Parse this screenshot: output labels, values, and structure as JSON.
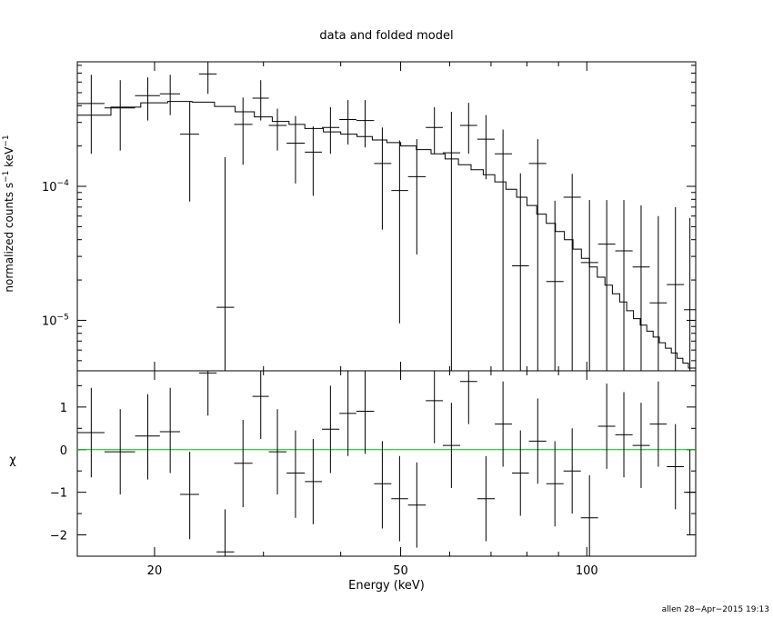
{
  "chart_data": [
    {
      "type": "scatter",
      "title": "data and folded model",
      "xlabel": "",
      "ylabel": "normalized counts s",
      "ylabel_unit": "keV",
      "ylabel_exp": "−1",
      "xscale": "log",
      "yscale": "log",
      "xlim": [
        15.0,
        150.0
      ],
      "ylim": [
        4.2e-06,
        0.00085
      ],
      "ytick_labels": [
        {
          "value": 0.0001,
          "base": "10",
          "exp": "−4"
        },
        {
          "value": 1e-05,
          "base": "10",
          "exp": "−5"
        }
      ],
      "series": [
        {
          "style": "crosses",
          "points": [
            {
              "x": 15.8,
              "xlo": 15.0,
              "xhi": 16.6,
              "y": 0.000415,
              "ylo": 0.000175,
              "yhi": 0.00068
            },
            {
              "x": 17.6,
              "xlo": 16.6,
              "xhi": 18.6,
              "y": 0.000385,
              "ylo": 0.000185,
              "yhi": 0.00062
            },
            {
              "x": 19.5,
              "xlo": 18.6,
              "xhi": 20.4,
              "y": 0.000475,
              "ylo": 0.00031,
              "yhi": 0.00065
            },
            {
              "x": 21.2,
              "xlo": 20.4,
              "xhi": 22.0,
              "y": 0.00049,
              "ylo": 0.00034,
              "yhi": 0.00068
            },
            {
              "x": 22.8,
              "xlo": 22.0,
              "xhi": 23.6,
              "y": 0.000245,
              "ylo": 7.7e-05,
              "yhi": 0.00043
            },
            {
              "x": 24.4,
              "xlo": 23.6,
              "xhi": 25.2,
              "y": 0.00069,
              "ylo": 0.00049,
              "yhi": 0.00085
            },
            {
              "x": 26.0,
              "xlo": 25.2,
              "xhi": 26.9,
              "y": 1.25e-05,
              "ylo": 4.2e-06,
              "yhi": 0.000165
            },
            {
              "x": 27.8,
              "xlo": 26.9,
              "xhi": 28.8,
              "y": 0.00029,
              "ylo": 0.000145,
              "yhi": 0.00046
            },
            {
              "x": 29.7,
              "xlo": 28.8,
              "xhi": 30.6,
              "y": 0.000455,
              "ylo": 0.00031,
              "yhi": 0.00062
            },
            {
              "x": 31.6,
              "xlo": 30.6,
              "xhi": 32.7,
              "y": 0.000285,
              "ylo": 0.000185,
              "yhi": 0.00038
            },
            {
              "x": 33.8,
              "xlo": 32.7,
              "xhi": 35.0,
              "y": 0.00021,
              "ylo": 0.000105,
              "yhi": 0.000335
            },
            {
              "x": 36.1,
              "xlo": 35.0,
              "xhi": 37.3,
              "y": 0.00018,
              "ylo": 8.5e-05,
              "yhi": 0.00028
            },
            {
              "x": 38.5,
              "xlo": 37.3,
              "xhi": 39.8,
              "y": 0.000275,
              "ylo": 0.000175,
              "yhi": 0.00039
            },
            {
              "x": 41.1,
              "xlo": 39.8,
              "xhi": 42.4,
              "y": 0.000315,
              "ylo": 0.000205,
              "yhi": 0.00044
            },
            {
              "x": 43.8,
              "xlo": 42.4,
              "xhi": 45.3,
              "y": 0.00031,
              "ylo": 0.000195,
              "yhi": 0.00044
            },
            {
              "x": 46.7,
              "xlo": 45.3,
              "xhi": 48.3,
              "y": 0.000148,
              "ylo": 4.75e-05,
              "yhi": 0.000275
            },
            {
              "x": 49.8,
              "xlo": 48.3,
              "xhi": 51.4,
              "y": 9.3e-05,
              "ylo": 9.5e-06,
              "yhi": 0.00022
            },
            {
              "x": 53.1,
              "xlo": 51.4,
              "xhi": 54.9,
              "y": 0.000118,
              "ylo": 3.1e-05,
              "yhi": 0.000225
            },
            {
              "x": 56.7,
              "xlo": 54.9,
              "xhi": 58.5,
              "y": 0.000275,
              "ylo": 0.000175,
              "yhi": 0.00039
            },
            {
              "x": 60.4,
              "xlo": 58.5,
              "xhi": 62.4,
              "y": 0.000178,
              "ylo": 4.2e-06,
              "yhi": 0.00036
            },
            {
              "x": 64.4,
              "xlo": 62.4,
              "xhi": 66.5,
              "y": 0.000285,
              "ylo": 0.000175,
              "yhi": 0.00042
            },
            {
              "x": 68.7,
              "xlo": 66.5,
              "xhi": 71.0,
              "y": 0.000225,
              "ylo": 0.000113,
              "yhi": 0.00034
            },
            {
              "x": 73.2,
              "xlo": 71.0,
              "xhi": 75.7,
              "y": 0.000175,
              "ylo": 4.2e-06,
              "yhi": 0.000265
            },
            {
              "x": 78.1,
              "xlo": 75.7,
              "xhi": 80.6,
              "y": 2.55e-05,
              "ylo": 4.2e-06,
              "yhi": 0.000125
            },
            {
              "x": 83.3,
              "xlo": 80.6,
              "xhi": 86.0,
              "y": 0.000148,
              "ylo": 4.2e-06,
              "yhi": 0.000225
            },
            {
              "x": 88.8,
              "xlo": 86.0,
              "xhi": 91.7,
              "y": 1.95e-05,
              "ylo": 4.2e-06,
              "yhi": 7.8e-05
            },
            {
              "x": 94.7,
              "xlo": 91.7,
              "xhi": 97.8,
              "y": 8.3e-05,
              "ylo": 4.2e-06,
              "yhi": 0.000124
            },
            {
              "x": 101.0,
              "xlo": 97.8,
              "xhi": 104.3,
              "y": 2.7e-05,
              "ylo": 4.2e-06,
              "yhi": 7.9e-05
            },
            {
              "x": 107.7,
              "xlo": 104.3,
              "xhi": 111.2,
              "y": 3.7e-05,
              "ylo": 4.2e-06,
              "yhi": 7.9e-05
            },
            {
              "x": 114.8,
              "xlo": 111.2,
              "xhi": 118.6,
              "y": 3.3e-05,
              "ylo": 4.2e-06,
              "yhi": 7.9e-05
            },
            {
              "x": 122.4,
              "xlo": 118.6,
              "xhi": 126.4,
              "y": 2.5e-05,
              "ylo": 4.2e-06,
              "yhi": 7.2e-05
            },
            {
              "x": 130.5,
              "xlo": 126.4,
              "xhi": 134.7,
              "y": 1.35e-05,
              "ylo": 4.2e-06,
              "yhi": 6e-05
            },
            {
              "x": 139.1,
              "xlo": 134.7,
              "xhi": 143.6,
              "y": 1.85e-05,
              "ylo": 4.2e-06,
              "yhi": 7e-05
            },
            {
              "x": 146.8,
              "xlo": 143.6,
              "xhi": 150.0,
              "y": 1.2e-05,
              "ylo": 4.2e-06,
              "yhi": 5.8e-05
            }
          ]
        },
        {
          "style": "step",
          "edges": [
            15.0,
            17.0,
            19.0,
            21.0,
            23.0,
            25.0,
            27.0,
            29.0,
            31.0,
            33.0,
            35.0,
            37.5,
            40.0,
            42.5,
            45.0,
            47.5,
            50.0,
            53.0,
            56.0,
            59.0,
            62.0,
            65.0,
            68.0,
            71.0,
            74.0,
            77.0,
            80.0,
            83.0,
            86.0,
            89.0,
            92.0,
            95.0,
            98.0,
            101.0,
            104.0,
            107.0,
            110.0,
            113.0,
            116.0,
            119.0,
            122.0,
            125.0,
            128.0,
            131.0,
            134.0,
            137.0,
            140.0,
            143.0,
            146.0,
            150.0
          ],
          "values": [
            0.00034,
            0.00039,
            0.00042,
            0.00043,
            0.000425,
            0.000395,
            0.00036,
            0.00033,
            0.000305,
            0.00029,
            0.00027,
            0.000255,
            0.000245,
            0.000235,
            0.000222,
            0.000212,
            0.0002,
            0.000188,
            0.000175,
            0.00016,
            0.000145,
            0.000133,
            0.000122,
            0.000108,
            9.5e-05,
            8.3e-05,
            7.2e-05,
            6.2e-05,
            5.3e-05,
            4.6e-05,
            4e-05,
            3.4e-05,
            2.9e-05,
            2.5e-05,
            2.1e-05,
            1.83e-05,
            1.58e-05,
            1.37e-05,
            1.18e-05,
            1.03e-05,
            9.2e-06,
            8.3e-06,
            7.5e-06,
            6.8e-06,
            6.2e-06,
            5.7e-06,
            5.2e-06,
            4.8e-06,
            4.4e-06
          ]
        }
      ]
    },
    {
      "type": "scatter",
      "xlabel": "Energy (keV)",
      "ylabel": "χ",
      "xscale": "log",
      "xlim": [
        15.0,
        150.0
      ],
      "ylim": [
        -2.5,
        1.85
      ],
      "xticks": [
        20,
        50,
        100
      ],
      "xtick_labels": [
        "20",
        "50",
        "100"
      ],
      "yticks": [
        -2,
        -1,
        0,
        1
      ],
      "ytick_labels": [
        "−2",
        "−1",
        "0",
        "1"
      ],
      "zero_line_color": "#00c000",
      "residuals": [
        {
          "x": 15.8,
          "xlo": 15.0,
          "xhi": 16.6,
          "y": 0.4,
          "ylo": -0.65,
          "yhi": 1.45
        },
        {
          "x": 17.6,
          "xlo": 16.6,
          "xhi": 18.6,
          "y": -0.05,
          "ylo": -1.05,
          "yhi": 0.95
        },
        {
          "x": 19.5,
          "xlo": 18.6,
          "xhi": 20.4,
          "y": 0.32,
          "ylo": -0.7,
          "yhi": 1.3
        },
        {
          "x": 21.2,
          "xlo": 20.4,
          "xhi": 22.0,
          "y": 0.42,
          "ylo": -0.55,
          "yhi": 1.45
        },
        {
          "x": 22.8,
          "xlo": 22.0,
          "xhi": 23.6,
          "y": -1.05,
          "ylo": -2.1,
          "yhi": -0.05
        },
        {
          "x": 24.4,
          "xlo": 23.6,
          "xhi": 25.2,
          "y": 1.8,
          "ylo": 0.8,
          "yhi": 1.85
        },
        {
          "x": 26.0,
          "xlo": 25.2,
          "xhi": 26.9,
          "y": -2.4,
          "ylo": -2.5,
          "yhi": -1.4
        },
        {
          "x": 27.8,
          "xlo": 26.9,
          "xhi": 28.8,
          "y": -0.32,
          "ylo": -1.35,
          "yhi": 0.7
        },
        {
          "x": 29.7,
          "xlo": 28.8,
          "xhi": 30.6,
          "y": 1.25,
          "ylo": 0.25,
          "yhi": 1.85
        },
        {
          "x": 31.6,
          "xlo": 30.6,
          "xhi": 32.7,
          "y": -0.05,
          "ylo": -1.05,
          "yhi": 0.95
        },
        {
          "x": 33.8,
          "xlo": 32.7,
          "xhi": 35.0,
          "y": -0.55,
          "ylo": -1.6,
          "yhi": 0.45
        },
        {
          "x": 36.1,
          "xlo": 35.0,
          "xhi": 37.3,
          "y": -0.75,
          "ylo": -1.75,
          "yhi": 0.25
        },
        {
          "x": 38.5,
          "xlo": 37.3,
          "xhi": 39.8,
          "y": 0.48,
          "ylo": -0.55,
          "yhi": 1.5
        },
        {
          "x": 41.1,
          "xlo": 39.8,
          "xhi": 42.4,
          "y": 0.85,
          "ylo": -0.15,
          "yhi": 1.85
        },
        {
          "x": 43.8,
          "xlo": 42.4,
          "xhi": 45.3,
          "y": 0.9,
          "ylo": -0.1,
          "yhi": 1.85
        },
        {
          "x": 46.7,
          "xlo": 45.3,
          "xhi": 48.3,
          "y": -0.8,
          "ylo": -1.85,
          "yhi": 0.2
        },
        {
          "x": 49.8,
          "xlo": 48.3,
          "xhi": 51.4,
          "y": -1.15,
          "ylo": -2.15,
          "yhi": -0.15
        },
        {
          "x": 53.1,
          "xlo": 51.4,
          "xhi": 54.9,
          "y": -1.3,
          "ylo": -2.3,
          "yhi": -0.3
        },
        {
          "x": 56.7,
          "xlo": 54.9,
          "xhi": 58.5,
          "y": 1.15,
          "ylo": 0.15,
          "yhi": 1.85
        },
        {
          "x": 60.4,
          "xlo": 58.5,
          "xhi": 62.4,
          "y": 0.1,
          "ylo": -0.9,
          "yhi": 1.1
        },
        {
          "x": 64.4,
          "xlo": 62.4,
          "xhi": 66.5,
          "y": 1.6,
          "ylo": 0.6,
          "yhi": 1.85
        },
        {
          "x": 68.7,
          "xlo": 66.5,
          "xhi": 71.0,
          "y": -1.15,
          "ylo": -2.15,
          "yhi": -0.15
        },
        {
          "x": 73.2,
          "xlo": 71.0,
          "xhi": 75.7,
          "y": 0.6,
          "ylo": -0.4,
          "yhi": 1.6
        },
        {
          "x": 78.1,
          "xlo": 75.7,
          "xhi": 80.6,
          "y": -0.55,
          "ylo": -1.55,
          "yhi": 0.45
        },
        {
          "x": 83.3,
          "xlo": 80.6,
          "xhi": 86.0,
          "y": 0.2,
          "ylo": -0.8,
          "yhi": 1.2
        },
        {
          "x": 88.8,
          "xlo": 86.0,
          "xhi": 91.7,
          "y": -0.8,
          "ylo": -1.8,
          "yhi": 0.2
        },
        {
          "x": 94.7,
          "xlo": 91.7,
          "xhi": 97.8,
          "y": -0.5,
          "ylo": -1.5,
          "yhi": 0.5
        },
        {
          "x": 101.0,
          "xlo": 97.8,
          "xhi": 104.3,
          "y": -1.6,
          "ylo": -2.5,
          "yhi": -0.6
        },
        {
          "x": 107.7,
          "xlo": 104.3,
          "xhi": 111.2,
          "y": 0.55,
          "ylo": -0.45,
          "yhi": 1.55
        },
        {
          "x": 114.8,
          "xlo": 111.2,
          "xhi": 118.6,
          "y": 0.35,
          "ylo": -0.65,
          "yhi": 1.35
        },
        {
          "x": 122.4,
          "xlo": 118.6,
          "xhi": 126.4,
          "y": 0.1,
          "ylo": -0.9,
          "yhi": 1.1
        },
        {
          "x": 130.5,
          "xlo": 126.4,
          "xhi": 134.7,
          "y": 0.6,
          "ylo": -0.4,
          "yhi": 1.6
        },
        {
          "x": 139.1,
          "xlo": 134.7,
          "xhi": 143.6,
          "y": -0.4,
          "ylo": -1.4,
          "yhi": 0.6
        },
        {
          "x": 146.8,
          "xlo": 143.6,
          "xhi": 150.0,
          "y": -1.0,
          "ylo": -2.0,
          "yhi": 0.0
        }
      ]
    }
  ],
  "footer": {
    "stamp": "allen 28−Apr−2015 19:13"
  }
}
